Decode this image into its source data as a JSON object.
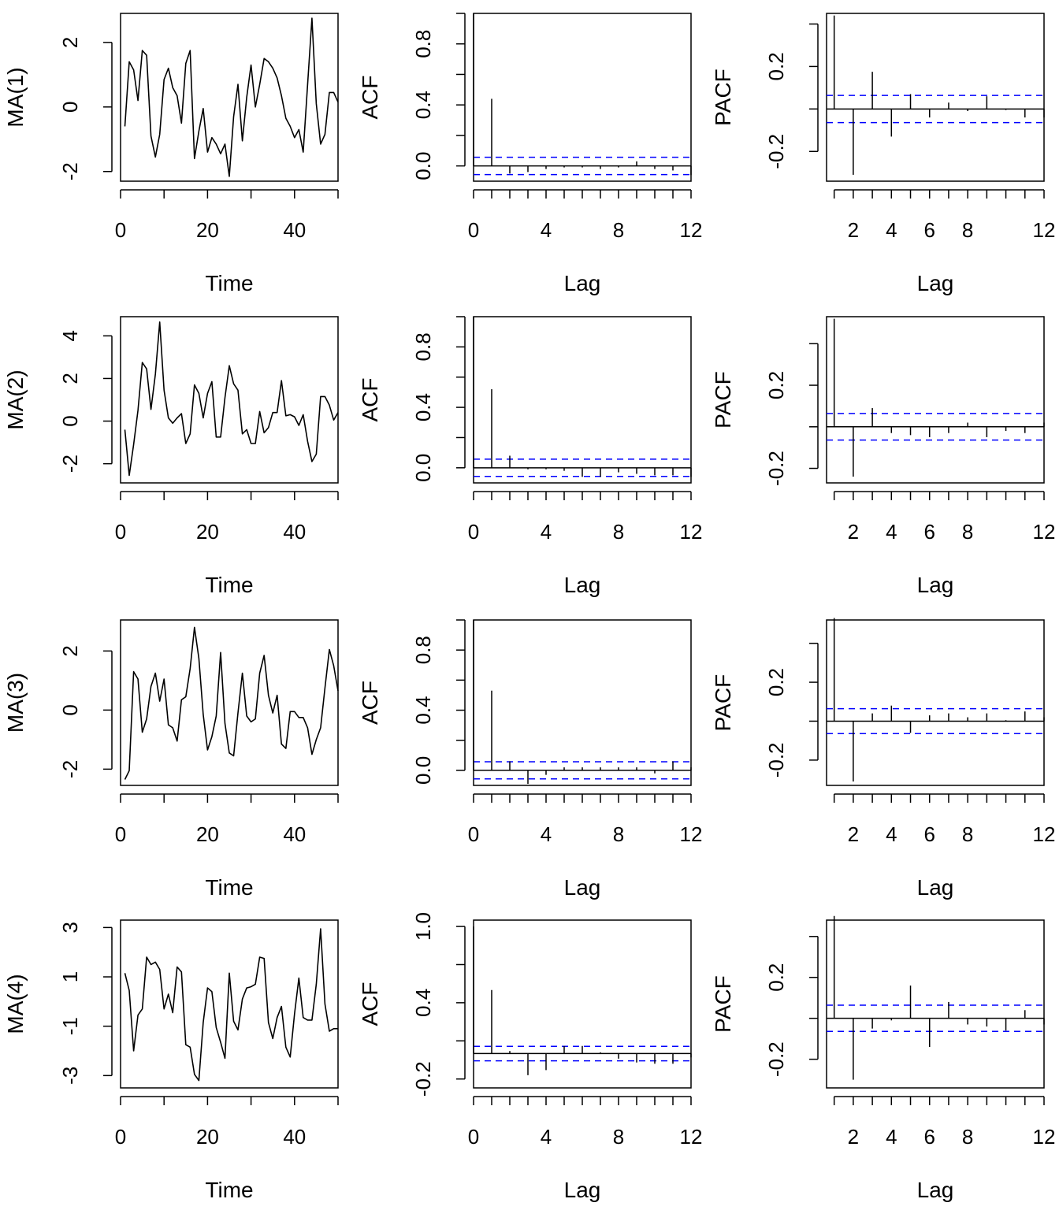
{
  "colors": {
    "axis": "#000000",
    "series": "#000000",
    "confidence_band": "#0000ff"
  },
  "chart_data": [
    {
      "type": "line",
      "xlabel": "Time",
      "ylabel": "MA(1)",
      "xlim": [
        0,
        50
      ],
      "ylim": [
        -2.3,
        2.9
      ],
      "xticks": [
        "0",
        "20",
        "40"
      ],
      "yticks": [
        "-2",
        "0",
        "2"
      ],
      "x": [
        1,
        2,
        3,
        4,
        5,
        6,
        7,
        8,
        9,
        10,
        11,
        12,
        13,
        14,
        15,
        16,
        17,
        18,
        19,
        20,
        21,
        22,
        23,
        24,
        25,
        26,
        27,
        28,
        29,
        30,
        31,
        32,
        33,
        34,
        35,
        36,
        37,
        38,
        39,
        40,
        41,
        42,
        43,
        44,
        45,
        46,
        47,
        48,
        49,
        50
      ],
      "values": [
        -0.6,
        1.4,
        1.15,
        0.2,
        1.75,
        1.6,
        -0.9,
        -1.55,
        -0.85,
        0.85,
        1.2,
        0.6,
        0.35,
        -0.5,
        1.35,
        1.75,
        -1.6,
        -0.75,
        -0.05,
        -1.4,
        -0.95,
        -1.15,
        -1.45,
        -1.15,
        -2.15,
        -0.3,
        0.7,
        -1.05,
        0.3,
        1.3,
        0.0,
        0.7,
        1.5,
        1.4,
        1.2,
        0.9,
        0.35,
        -0.35,
        -0.6,
        -0.95,
        -0.7,
        -1.4,
        0.7,
        2.75,
        0.1,
        -1.15,
        -0.85,
        0.45,
        0.45,
        0.15
      ]
    },
    {
      "type": "bar",
      "xlabel": "Lag",
      "ylabel": "ACF",
      "xlim": [
        0,
        12
      ],
      "ylim": [
        -0.1,
        1.0
      ],
      "xticks": [
        "0",
        "4",
        "8",
        "12"
      ],
      "yticks": [
        "0.0",
        "0.4",
        "0.8"
      ],
      "confidence_limit": 0.057,
      "x": [
        0,
        1,
        2,
        3,
        4,
        5,
        6,
        7,
        8,
        9,
        10,
        11,
        12
      ],
      "values": [
        1.0,
        0.44,
        -0.05,
        -0.04,
        -0.02,
        -0.01,
        -0.01,
        -0.02,
        -0.01,
        0.03,
        -0.02,
        -0.03,
        -0.06
      ]
    },
    {
      "type": "bar",
      "xlabel": "Lag",
      "ylabel": "PACF",
      "xlim": [
        0.6,
        12
      ],
      "ylim": [
        -0.34,
        0.45
      ],
      "xticks": [
        "2",
        "4",
        "6",
        "8",
        "12"
      ],
      "yticks": [
        "-0.2",
        "0.2"
      ],
      "confidence_limit": 0.064,
      "x": [
        1,
        2,
        3,
        4,
        5,
        6,
        7,
        8,
        9,
        10,
        11,
        12
      ],
      "values": [
        0.44,
        -0.31,
        0.175,
        -0.13,
        0.07,
        -0.04,
        0.03,
        -0.01,
        0.06,
        -0.005,
        -0.04,
        -0.04
      ]
    },
    {
      "type": "line",
      "xlabel": "Time",
      "ylabel": "MA(2)",
      "xlim": [
        0,
        50
      ],
      "ylim": [
        -2.9,
        4.9
      ],
      "xticks": [
        "0",
        "20",
        "40"
      ],
      "yticks": [
        "-2",
        "0",
        "2",
        "4"
      ],
      "x": [
        1,
        2,
        3,
        4,
        5,
        6,
        7,
        8,
        9,
        10,
        11,
        12,
        13,
        14,
        15,
        16,
        17,
        18,
        19,
        20,
        21,
        22,
        23,
        24,
        25,
        26,
        27,
        28,
        29,
        30,
        31,
        32,
        33,
        34,
        35,
        36,
        37,
        38,
        39,
        40,
        41,
        42,
        43,
        44,
        45,
        46,
        47,
        48,
        49,
        50
      ],
      "values": [
        -0.4,
        -2.55,
        -1.1,
        0.5,
        2.75,
        2.45,
        0.55,
        2.2,
        4.65,
        1.45,
        0.15,
        -0.1,
        0.15,
        0.35,
        -1.05,
        -0.6,
        1.7,
        1.3,
        0.15,
        1.3,
        1.85,
        -0.75,
        -0.75,
        1.1,
        2.6,
        1.75,
        1.45,
        -0.6,
        -0.4,
        -1.05,
        -1.05,
        0.45,
        -0.55,
        -0.3,
        0.4,
        0.4,
        1.9,
        0.25,
        0.3,
        0.2,
        -0.2,
        0.3,
        -0.95,
        -1.9,
        -1.55,
        1.15,
        1.15,
        0.75,
        0.05,
        0.4
      ]
    },
    {
      "type": "bar",
      "xlabel": "Lag",
      "ylabel": "ACF",
      "xlim": [
        0,
        12
      ],
      "ylim": [
        -0.1,
        1.0
      ],
      "xticks": [
        "0",
        "4",
        "8",
        "12"
      ],
      "yticks": [
        "0.0",
        "0.4",
        "0.8"
      ],
      "confidence_limit": 0.057,
      "x": [
        0,
        1,
        2,
        3,
        4,
        5,
        6,
        7,
        8,
        9,
        10,
        11,
        12
      ],
      "values": [
        1.0,
        0.52,
        0.08,
        -0.01,
        -0.01,
        -0.02,
        -0.06,
        -0.06,
        -0.03,
        -0.04,
        -0.05,
        -0.05,
        -0.06
      ]
    },
    {
      "type": "bar",
      "xlabel": "Lag",
      "ylabel": "PACF",
      "xlim": [
        0.6,
        12
      ],
      "ylim": [
        -0.27,
        0.53
      ],
      "xticks": [
        "2",
        "4",
        "6",
        "8",
        "12"
      ],
      "yticks": [
        "-0.2",
        "0.2"
      ],
      "confidence_limit": 0.064,
      "x": [
        1,
        2,
        3,
        4,
        5,
        6,
        7,
        8,
        9,
        10,
        11,
        12
      ],
      "values": [
        0.52,
        -0.24,
        0.09,
        -0.03,
        -0.04,
        -0.05,
        -0.03,
        0.02,
        -0.05,
        -0.02,
        -0.03,
        0.02
      ]
    },
    {
      "type": "line",
      "xlabel": "Time",
      "ylabel": "MA(3)",
      "xlim": [
        0,
        50
      ],
      "ylim": [
        -2.55,
        3.05
      ],
      "xticks": [
        "0",
        "20",
        "40"
      ],
      "yticks": [
        "-2",
        "0",
        "2"
      ],
      "x": [
        1,
        2,
        3,
        4,
        5,
        6,
        7,
        8,
        9,
        10,
        11,
        12,
        13,
        14,
        15,
        16,
        17,
        18,
        19,
        20,
        21,
        22,
        23,
        24,
        25,
        26,
        27,
        28,
        29,
        30,
        31,
        32,
        33,
        34,
        35,
        36,
        37,
        38,
        39,
        40,
        41,
        42,
        43,
        44,
        45,
        46,
        47,
        48,
        49,
        50
      ],
      "values": [
        -2.35,
        -2.05,
        1.3,
        1.05,
        -0.75,
        -0.3,
        0.8,
        1.25,
        0.3,
        1.05,
        -0.5,
        -0.6,
        -1.05,
        0.35,
        0.45,
        1.4,
        2.8,
        1.75,
        -0.15,
        -1.35,
        -0.9,
        -0.2,
        1.95,
        -0.45,
        -1.45,
        -1.55,
        -0.1,
        1.25,
        -0.2,
        -0.4,
        -0.3,
        1.25,
        1.85,
        0.5,
        -0.1,
        0.5,
        -1.15,
        -1.3,
        -0.05,
        -0.05,
        -0.25,
        -0.25,
        -0.6,
        -1.5,
        -1.0,
        -0.6,
        0.75,
        2.05,
        1.5,
        0.65
      ]
    },
    {
      "type": "bar",
      "xlabel": "Lag",
      "ylabel": "ACF",
      "xlim": [
        0,
        12
      ],
      "ylim": [
        -0.1,
        1.0
      ],
      "xticks": [
        "0",
        "4",
        "8",
        "12"
      ],
      "yticks": [
        "0.0",
        "0.4",
        "0.8"
      ],
      "confidence_limit": 0.057,
      "x": [
        0,
        1,
        2,
        3,
        4,
        5,
        6,
        7,
        8,
        9,
        10,
        11,
        12
      ],
      "values": [
        1.0,
        0.53,
        0.06,
        -0.09,
        -0.03,
        0.02,
        0.02,
        0.02,
        0.02,
        0.02,
        -0.02,
        0.06,
        0.02
      ]
    },
    {
      "type": "bar",
      "xlabel": "Lag",
      "ylabel": "PACF",
      "xlim": [
        0.6,
        12
      ],
      "ylim": [
        -0.33,
        0.52
      ],
      "xticks": [
        "2",
        "4",
        "6",
        "8",
        "12"
      ],
      "yticks": [
        "-0.2",
        "0.2"
      ],
      "confidence_limit": 0.064,
      "x": [
        1,
        2,
        3,
        4,
        5,
        6,
        7,
        8,
        9,
        10,
        11,
        12
      ],
      "values": [
        0.53,
        -0.31,
        0.04,
        0.08,
        -0.06,
        0.03,
        0.04,
        0.02,
        0.04,
        0.005,
        0.05,
        0.02
      ]
    },
    {
      "type": "line",
      "xlabel": "Time",
      "ylabel": "MA(4)",
      "xlim": [
        0,
        50
      ],
      "ylim": [
        -3.5,
        3.3
      ],
      "xticks": [
        "0",
        "20",
        "40"
      ],
      "yticks": [
        "-3",
        "-1",
        "1",
        "3"
      ],
      "x": [
        1,
        2,
        3,
        4,
        5,
        6,
        7,
        8,
        9,
        10,
        11,
        12,
        13,
        14,
        15,
        16,
        17,
        18,
        19,
        20,
        21,
        22,
        23,
        24,
        25,
        26,
        27,
        28,
        29,
        30,
        31,
        32,
        33,
        34,
        35,
        36,
        37,
        38,
        39,
        40,
        41,
        42,
        43,
        44,
        45,
        46,
        47,
        48,
        49,
        50
      ],
      "values": [
        1.15,
        0.45,
        -2.0,
        -0.55,
        -0.3,
        1.8,
        1.5,
        1.6,
        1.3,
        -0.3,
        0.3,
        -0.45,
        1.4,
        1.2,
        -1.75,
        -1.85,
        -2.95,
        -3.2,
        -0.85,
        0.55,
        0.4,
        -1.05,
        -1.65,
        -2.3,
        1.15,
        -0.8,
        -1.15,
        0.1,
        0.55,
        0.6,
        0.7,
        1.8,
        1.75,
        -0.85,
        -1.5,
        -0.65,
        -0.2,
        -1.85,
        -2.25,
        -0.5,
        0.95,
        -0.65,
        -0.75,
        -0.75,
        0.7,
        2.95,
        -0.1,
        -1.2,
        -1.1,
        -1.1
      ]
    },
    {
      "type": "bar",
      "xlabel": "Lag",
      "ylabel": "ACF",
      "xlim": [
        0,
        12
      ],
      "ylim": [
        -0.27,
        1.05
      ],
      "xticks": [
        "0",
        "4",
        "8",
        "12"
      ],
      "yticks": [
        "-0.2",
        "0.4",
        "1.0"
      ],
      "confidence_limit": 0.057,
      "x": [
        0,
        1,
        2,
        3,
        4,
        5,
        6,
        7,
        8,
        9,
        10,
        11,
        12
      ],
      "values": [
        1.0,
        0.5,
        0.02,
        -0.17,
        -0.13,
        0.06,
        0.06,
        0.01,
        -0.04,
        -0.07,
        -0.08,
        -0.08,
        -0.03
      ]
    },
    {
      "type": "bar",
      "xlabel": "Lag",
      "ylabel": "PACF",
      "xlim": [
        0.6,
        12
      ],
      "ylim": [
        -0.34,
        0.48
      ],
      "xticks": [
        "2",
        "4",
        "6",
        "8",
        "12"
      ],
      "yticks": [
        "-0.2",
        "0.2"
      ],
      "confidence_limit": 0.064,
      "x": [
        1,
        2,
        3,
        4,
        5,
        6,
        7,
        8,
        9,
        10,
        11,
        12
      ],
      "values": [
        0.5,
        -0.3,
        -0.05,
        -0.01,
        0.16,
        -0.14,
        0.08,
        -0.03,
        -0.04,
        -0.06,
        0.04,
        -0.03
      ]
    }
  ]
}
